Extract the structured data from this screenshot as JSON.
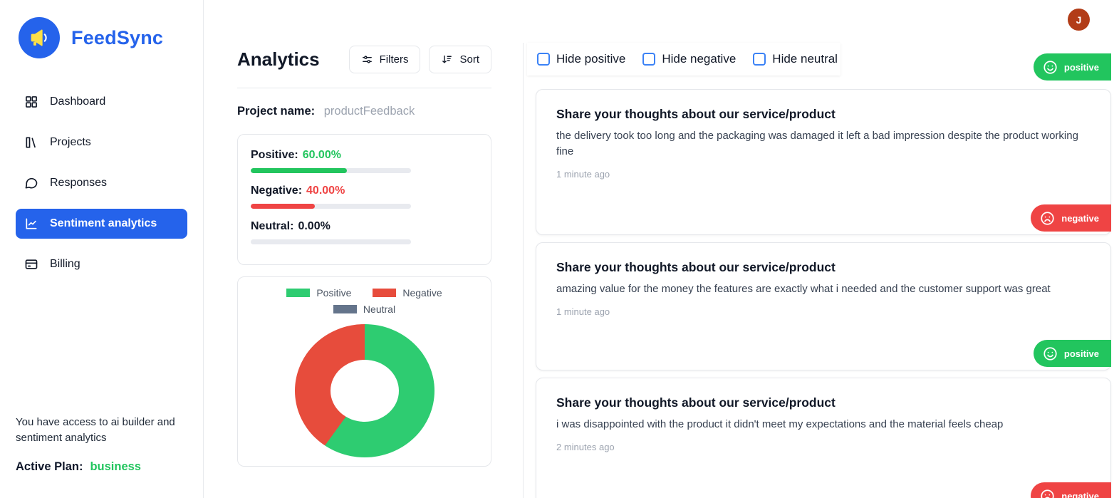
{
  "brand": {
    "name": "FeedSync"
  },
  "colors": {
    "accent": "#2563eb",
    "positive": "#22c55e",
    "negative": "#ef4444",
    "neutral": "#6b7280",
    "avatar": "#b23c17"
  },
  "sidebar": {
    "items": [
      {
        "label": "Dashboard",
        "icon": "dashboard-icon",
        "active": false
      },
      {
        "label": "Projects",
        "icon": "projects-icon",
        "active": false
      },
      {
        "label": "Responses",
        "icon": "responses-icon",
        "active": false
      },
      {
        "label": "Sentiment analytics",
        "icon": "analytics-icon",
        "active": true
      },
      {
        "label": "Billing",
        "icon": "billing-icon",
        "active": false
      }
    ],
    "footer_note": "You have access to ai builder and sentiment analytics",
    "plan_label": "Active Plan:",
    "plan_value": "business"
  },
  "header": {
    "avatar_initial": "J"
  },
  "analytics": {
    "title": "Analytics",
    "filters_label": "Filters",
    "sort_label": "Sort",
    "project_label": "Project name:",
    "project_name": "productFeedback",
    "stats": [
      {
        "label": "Positive:",
        "value": "60.00%",
        "percent": 60,
        "color": "#22c55e",
        "value_color": "#22c55e"
      },
      {
        "label": "Negative:",
        "value": "40.00%",
        "percent": 40,
        "color": "#ef4444",
        "value_color": "#ef4444"
      },
      {
        "label": "Neutral:",
        "value": "0.00%",
        "percent": 0,
        "color": "#6b7280",
        "value_color": "#111827"
      }
    ],
    "chart_data": {
      "type": "pie",
      "labels": [
        "Positive",
        "Negative",
        "Neutral"
      ],
      "values": [
        60,
        40,
        0
      ],
      "colors": [
        "#2ecc71",
        "#e74c3c",
        "#64748b"
      ],
      "legend_position": "top"
    }
  },
  "feed": {
    "filters": [
      {
        "label": "Hide positive",
        "checked": false
      },
      {
        "label": "Hide negative",
        "checked": false
      },
      {
        "label": "Hide neutral",
        "checked": false
      }
    ],
    "leading_badge": {
      "label": "positive",
      "sentiment": "positive"
    },
    "cards": [
      {
        "title": "Share your thoughts about our service/product",
        "body": "the delivery took too long and the packaging was damaged it left a bad impression despite the product working fine",
        "time": "1 minute ago",
        "sentiment": "negative",
        "badge_label": "negative"
      },
      {
        "title": "Share your thoughts about our service/product",
        "body": "amazing value for the money the features are exactly what i needed and the customer support was great",
        "time": "1 minute ago",
        "sentiment": "positive",
        "badge_label": "positive"
      },
      {
        "title": "Share your thoughts about our service/product",
        "body": "i was disappointed with the product it didn't meet my expectations and the material feels cheap",
        "time": "2 minutes ago",
        "sentiment": "negative",
        "badge_label": "negative"
      }
    ]
  }
}
